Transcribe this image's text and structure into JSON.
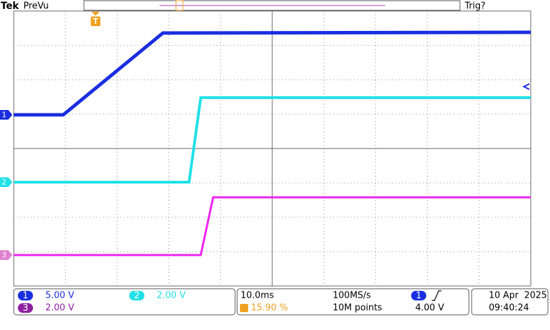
{
  "header": {
    "brand": "Tek",
    "mode": "PreVu",
    "trigger_status": "Trig?"
  },
  "markers": {
    "trigger": "T",
    "ch1": "1",
    "ch2": "2",
    "ch3": "3"
  },
  "channels": [
    {
      "label": "1",
      "scale": "5.00 V"
    },
    {
      "label": "2",
      "scale": "2.00 V"
    },
    {
      "label": "3",
      "scale": "2.00 V"
    }
  ],
  "timebase": {
    "scale": "10.0ms",
    "trigger_position": "15.90 %",
    "sample_rate": "100MS/s",
    "record_length": "10M points"
  },
  "trigger": {
    "source": "1",
    "level": "4.00 V"
  },
  "datetime": {
    "date": "10 Apr  2025",
    "time": "09:40:24"
  }
}
